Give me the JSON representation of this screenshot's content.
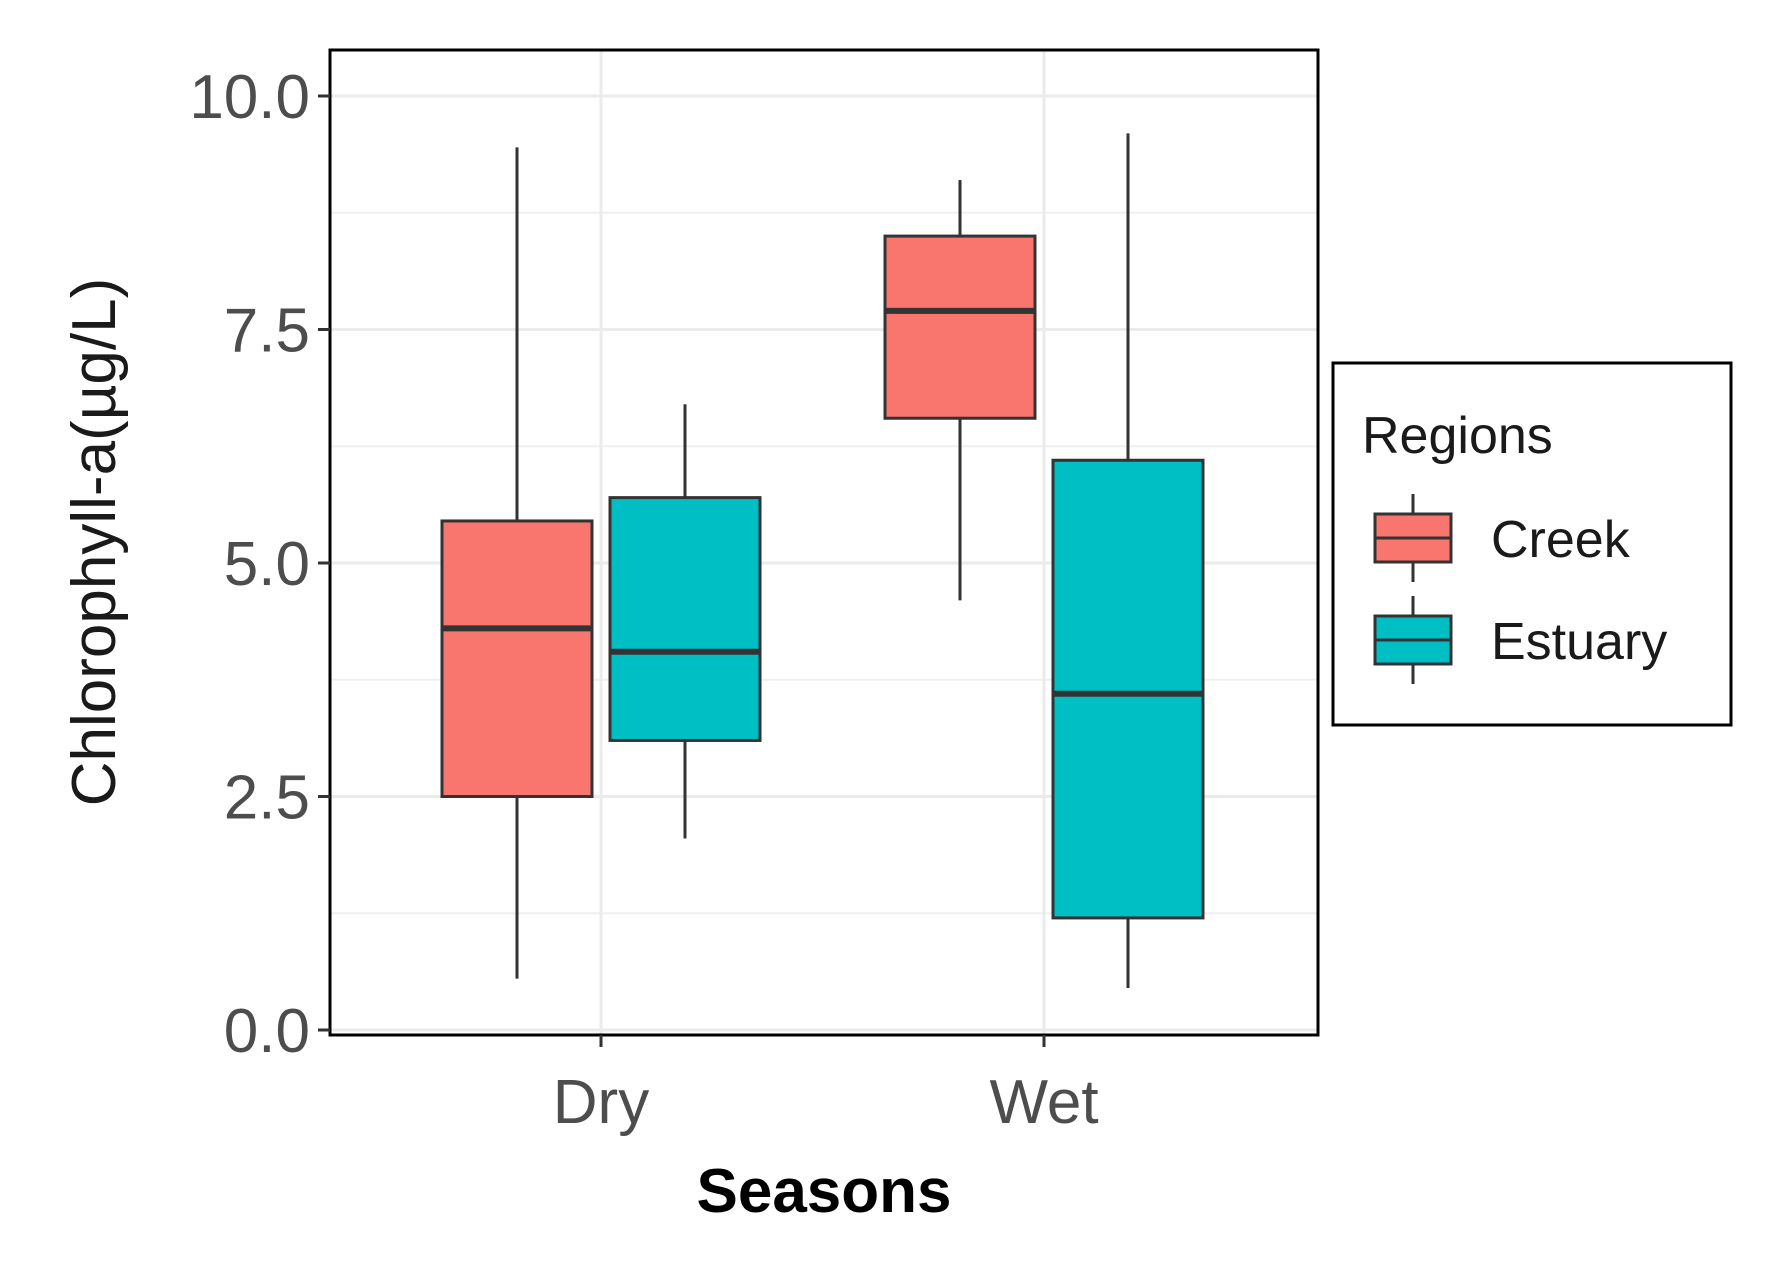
{
  "chart_data": {
    "type": "boxplot",
    "title": "",
    "xlabel": "Seasons",
    "ylabel": "Chlorophyll-a(µg/L)",
    "categories": [
      "Dry",
      "Wet"
    ],
    "ylim": [
      0,
      10.5
    ],
    "yticks": [
      0.0,
      2.5,
      5.0,
      7.5,
      10.0
    ],
    "ytick_labels": [
      "0.0",
      "2.5",
      "5.0",
      "7.5",
      "10.0"
    ],
    "grid": true,
    "legend": {
      "title": "Regions",
      "placement": "right"
    },
    "series": [
      {
        "name": "Creek",
        "color": "#F8766D",
        "boxes": [
          {
            "category": "Dry",
            "whisker_low": 0.55,
            "q1": 2.5,
            "median": 4.3,
            "q3": 5.45,
            "whisker_high": 9.45
          },
          {
            "category": "Wet",
            "whisker_low": 4.6,
            "q1": 6.55,
            "median": 7.7,
            "q3": 8.5,
            "whisker_high": 9.1
          }
        ]
      },
      {
        "name": "Estuary",
        "color": "#00BFC4",
        "boxes": [
          {
            "category": "Dry",
            "whisker_low": 2.05,
            "q1": 3.1,
            "median": 4.05,
            "q3": 5.7,
            "whisker_high": 6.7
          },
          {
            "category": "Wet",
            "whisker_low": 0.45,
            "q1": 1.2,
            "median": 3.6,
            "q3": 6.1,
            "whisker_high": 9.6
          }
        ]
      }
    ]
  }
}
